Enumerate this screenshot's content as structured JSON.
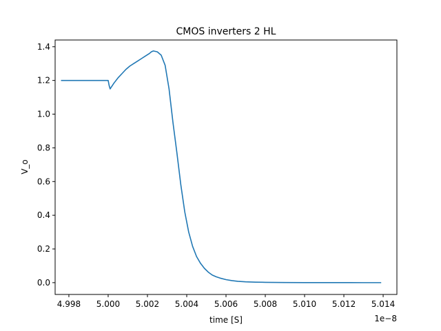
{
  "chart_data": {
    "type": "line",
    "title": "CMOS inverters 2 HL",
    "xlabel": "time [S]",
    "ylabel": "V_o",
    "x_offset_label": "1e−8",
    "xlim": [
      4.9973,
      5.0147
    ],
    "ylim": [
      -0.07,
      1.44
    ],
    "x_ticks": [
      4.998,
      5.0,
      5.002,
      5.004,
      5.006,
      5.008,
      5.01,
      5.012,
      5.014
    ],
    "x_tick_labels": [
      "4.998",
      "5.000",
      "5.002",
      "5.004",
      "5.006",
      "5.008",
      "5.010",
      "5.012",
      "5.014"
    ],
    "y_ticks": [
      0.0,
      0.2,
      0.4,
      0.6,
      0.8,
      1.0,
      1.2,
      1.4
    ],
    "y_tick_labels": [
      "0.0",
      "0.2",
      "0.4",
      "0.6",
      "0.8",
      "1.0",
      "1.2",
      "1.4"
    ],
    "grid": false,
    "series": [
      {
        "color": "#1f77b4",
        "x": [
          4.9976,
          4.998,
          4.9985,
          4.999,
          4.9995,
          5.0,
          5.00005,
          5.0001,
          5.0003,
          5.0005,
          5.0007,
          5.0009,
          5.0011,
          5.0013,
          5.0015,
          5.0017,
          5.0019,
          5.0021,
          5.0022,
          5.0023,
          5.0025,
          5.0027,
          5.0029,
          5.0031,
          5.0033,
          5.0035,
          5.0037,
          5.0039,
          5.0041,
          5.0043,
          5.0045,
          5.0047,
          5.0049,
          5.0051,
          5.0053,
          5.0055,
          5.0057,
          5.006,
          5.0063,
          5.0066,
          5.007,
          5.0075,
          5.008,
          5.009,
          5.01,
          5.011,
          5.012,
          5.013,
          5.0139
        ],
        "y": [
          1.2,
          1.2,
          1.2,
          1.2,
          1.2,
          1.2,
          1.17,
          1.15,
          1.185,
          1.215,
          1.24,
          1.265,
          1.285,
          1.3,
          1.315,
          1.33,
          1.345,
          1.36,
          1.37,
          1.375,
          1.37,
          1.35,
          1.29,
          1.15,
          0.95,
          0.77,
          0.58,
          0.42,
          0.3,
          0.215,
          0.155,
          0.115,
          0.085,
          0.062,
          0.045,
          0.035,
          0.027,
          0.018,
          0.012,
          0.008,
          0.005,
          0.003,
          0.002,
          0.001,
          0.0005,
          0.0003,
          0.0002,
          0.0001,
          0.0001
        ]
      }
    ]
  }
}
